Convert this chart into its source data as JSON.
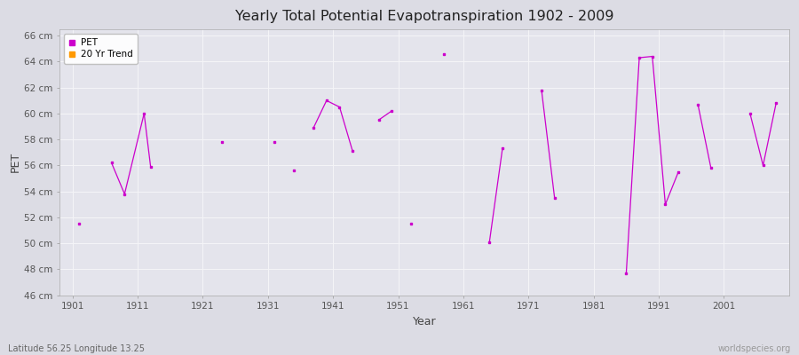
{
  "title": "Yearly Total Potential Evapotranspiration 1902 - 2009",
  "xlabel": "Year",
  "ylabel": "PET",
  "subtitle_left": "Latitude 56.25 Longitude 13.25",
  "subtitle_right": "worldspecies.org",
  "background_color": "#dcdce4",
  "plot_bg_color": "#e4e4ec",
  "grid_color": "#f5f5f8",
  "ylim": [
    46,
    66.5
  ],
  "ytick_labels": [
    "46 cm",
    "48 cm",
    "50 cm",
    "52 cm",
    "54 cm",
    "56 cm",
    "58 cm",
    "60 cm",
    "62 cm",
    "64 cm",
    "66 cm"
  ],
  "ytick_values": [
    46,
    48,
    50,
    52,
    54,
    56,
    58,
    60,
    62,
    64,
    66
  ],
  "xlim": [
    1899,
    2011
  ],
  "xtick_values": [
    1901,
    1911,
    1921,
    1931,
    1941,
    1951,
    1961,
    1971,
    1981,
    1991,
    2001
  ],
  "pet_color": "#cc00cc",
  "trend_color": "#ff9900",
  "pet_segments": [
    [
      [
        1902,
        51.5
      ]
    ],
    [
      [
        1907,
        56.2
      ],
      [
        1909,
        53.8
      ],
      [
        1912,
        60.0
      ],
      [
        1913,
        55.9
      ]
    ],
    [
      [
        1924,
        57.8
      ]
    ],
    [
      [
        1932,
        57.8
      ]
    ],
    [
      [
        1935,
        55.6
      ]
    ],
    [
      [
        1938,
        58.9
      ],
      [
        1940,
        61.0
      ],
      [
        1942,
        60.5
      ],
      [
        1944,
        57.1
      ]
    ],
    [
      [
        1948,
        59.5
      ],
      [
        1950,
        60.2
      ]
    ],
    [
      [
        1953,
        51.5
      ]
    ],
    [
      [
        1958,
        64.6
      ]
    ],
    [
      [
        1965,
        50.1
      ],
      [
        1967,
        57.3
      ]
    ],
    [
      [
        1973,
        61.8
      ],
      [
        1975,
        53.5
      ]
    ],
    [
      [
        1986,
        47.7
      ],
      [
        1988,
        64.3
      ],
      [
        1990,
        64.4
      ],
      [
        1992,
        53.0
      ],
      [
        1994,
        55.5
      ]
    ],
    [
      [
        1997,
        60.7
      ],
      [
        1999,
        55.8
      ]
    ],
    [
      [
        2005,
        60.0
      ],
      [
        2007,
        56.0
      ],
      [
        2009,
        60.8
      ]
    ]
  ]
}
